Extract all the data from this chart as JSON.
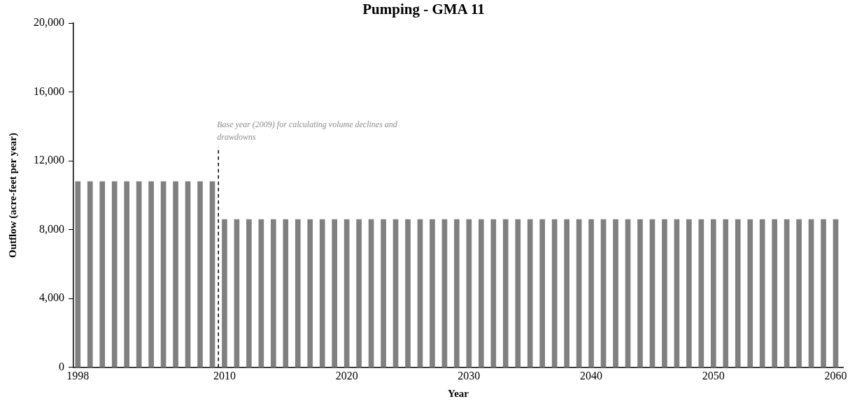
{
  "chart_data": {
    "type": "bar",
    "title": "Pumping - GMA 11",
    "xlabel": "Year",
    "ylabel": "Outflow (acre-feet per year)",
    "x": [
      1998,
      1999,
      2000,
      2001,
      2002,
      2003,
      2004,
      2005,
      2006,
      2007,
      2008,
      2009,
      2010,
      2011,
      2012,
      2013,
      2014,
      2015,
      2016,
      2017,
      2018,
      2019,
      2020,
      2021,
      2022,
      2023,
      2024,
      2025,
      2026,
      2027,
      2028,
      2029,
      2030,
      2031,
      2032,
      2033,
      2034,
      2035,
      2036,
      2037,
      2038,
      2039,
      2040,
      2041,
      2042,
      2043,
      2044,
      2045,
      2046,
      2047,
      2048,
      2049,
      2050,
      2051,
      2052,
      2053,
      2054,
      2055,
      2056,
      2057,
      2058,
      2059,
      2060
    ],
    "values": [
      10800,
      10800,
      10800,
      10800,
      10800,
      10800,
      10800,
      10800,
      10800,
      10800,
      10800,
      10800,
      8600,
      8600,
      8600,
      8600,
      8600,
      8600,
      8600,
      8600,
      8600,
      8600,
      8600,
      8600,
      8600,
      8600,
      8600,
      8600,
      8600,
      8600,
      8600,
      8600,
      8600,
      8600,
      8600,
      8600,
      8600,
      8600,
      8600,
      8600,
      8600,
      8600,
      8600,
      8600,
      8600,
      8600,
      8600,
      8600,
      8600,
      8600,
      8600,
      8600,
      8600,
      8600,
      8600,
      8600,
      8600,
      8600,
      8600,
      8600,
      8600,
      8600,
      8600
    ],
    "color": "#808080",
    "xlim": [
      1997.64,
      2060.6
    ],
    "xticks": [
      {
        "value": 1998,
        "label": "1998"
      },
      {
        "value": 2010,
        "label": "2010"
      },
      {
        "value": 2020,
        "label": "2020"
      },
      {
        "value": 2030,
        "label": "2030"
      },
      {
        "value": 2040,
        "label": "2040"
      },
      {
        "value": 2050,
        "label": "2050"
      },
      {
        "value": 2060,
        "label": "2060"
      }
    ],
    "ylim": [
      0,
      20000
    ],
    "yticks": [
      0,
      {
        "value": 4000,
        "label": "4,000"
      },
      {
        "value": 8000,
        "label": "8,000"
      },
      {
        "value": 12000,
        "label": "12,000"
      },
      {
        "value": 16000,
        "label": "16,000"
      },
      {
        "value": 20000,
        "label": "20,000"
      }
    ],
    "ref_lines": [
      {
        "axis": "x",
        "value": 2009.5,
        "label": "Base year (2009) for calculating volume declines and drawdowns",
        "color": "#000000",
        "line_style": "dashed"
      }
    ],
    "grid": false,
    "legend": false
  }
}
